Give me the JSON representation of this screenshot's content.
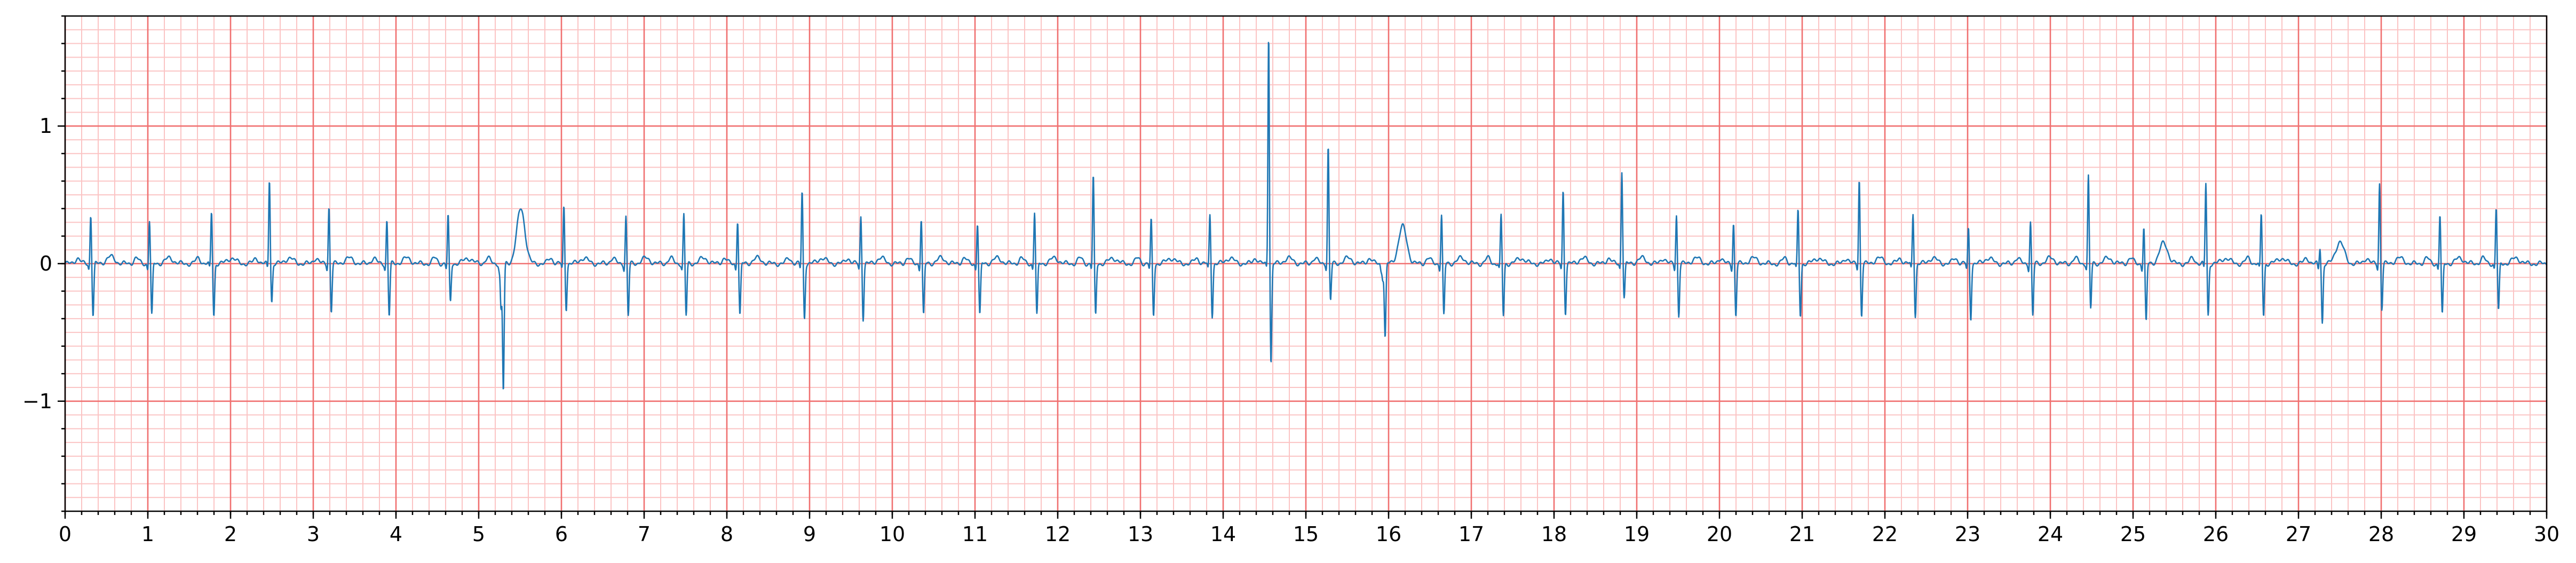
{
  "chart_data": {
    "type": "line",
    "title": "",
    "xlabel": "",
    "ylabel": "",
    "xlim": [
      0,
      30
    ],
    "ylim": [
      -1.8,
      1.8
    ],
    "x_ticks": [
      "0",
      "1",
      "2",
      "3",
      "4",
      "5",
      "6",
      "7",
      "8",
      "9",
      "10",
      "11",
      "12",
      "13",
      "14",
      "15",
      "16",
      "17",
      "18",
      "19",
      "20",
      "21",
      "22",
      "23",
      "24",
      "25",
      "26",
      "27",
      "28",
      "29",
      "30"
    ],
    "y_ticks": [
      {
        "value": 1,
        "label": "1"
      },
      {
        "value": 0,
        "label": "0"
      },
      {
        "value": -1,
        "label": "−1"
      }
    ],
    "grid": {
      "major_step_x": 1,
      "minor_step_x": 0.2,
      "major_step_y": 1,
      "minor_step_y": 0.1,
      "major_color": "#f07070",
      "minor_color": "#fbc4c4"
    },
    "series": [
      {
        "color": "#1f77b4",
        "baseline": 0.0,
        "beats": [
          {
            "t": 0.31,
            "r": 0.36,
            "s": -0.38,
            "tw": 0.05
          },
          {
            "t": 1.02,
            "r": 0.32,
            "s": -0.38,
            "tw": 0.04
          },
          {
            "t": 1.77,
            "r": 0.38,
            "s": -0.38,
            "tw": 0.04
          },
          {
            "t": 2.47,
            "r": 0.62,
            "s": -0.28,
            "tw": 0.04
          },
          {
            "t": 3.19,
            "r": 0.42,
            "s": -0.35,
            "tw": 0.04
          },
          {
            "t": 3.89,
            "r": 0.32,
            "s": -0.38,
            "tw": 0.04
          },
          {
            "t": 4.63,
            "r": 0.35,
            "s": -0.28,
            "tw": 0.04
          },
          {
            "t": 5.27,
            "r": -0.33,
            "s": -0.93,
            "tw": 0.4
          },
          {
            "t": 6.03,
            "r": 0.42,
            "s": -0.33,
            "tw": 0.04
          },
          {
            "t": 6.78,
            "r": 0.35,
            "s": -0.38,
            "tw": 0.04
          },
          {
            "t": 7.48,
            "r": 0.36,
            "s": -0.38,
            "tw": 0.04
          },
          {
            "t": 8.13,
            "r": 0.32,
            "s": -0.38,
            "tw": 0.04
          },
          {
            "t": 8.91,
            "r": 0.53,
            "s": -0.4,
            "tw": 0.04
          },
          {
            "t": 9.62,
            "r": 0.35,
            "s": -0.4,
            "tw": 0.04
          },
          {
            "t": 10.35,
            "r": 0.33,
            "s": -0.38,
            "tw": 0.04
          },
          {
            "t": 11.03,
            "r": 0.3,
            "s": -0.38,
            "tw": 0.04
          },
          {
            "t": 11.72,
            "r": 0.38,
            "s": -0.38,
            "tw": 0.04
          },
          {
            "t": 12.43,
            "r": 0.64,
            "s": -0.38,
            "tw": 0.04
          },
          {
            "t": 13.13,
            "r": 0.32,
            "s": -0.38,
            "tw": 0.04
          },
          {
            "t": 13.84,
            "r": 0.36,
            "s": -0.38,
            "tw": 0.04
          },
          {
            "t": 14.55,
            "r": 1.68,
            "s": -0.73,
            "tw": 0.04
          },
          {
            "t": 15.27,
            "r": 0.86,
            "s": -0.27,
            "tw": 0.04
          },
          {
            "t": 15.93,
            "r": -0.1,
            "s": -0.54,
            "tw": 0.27
          },
          {
            "t": 16.64,
            "r": 0.36,
            "s": -0.38,
            "tw": 0.04
          },
          {
            "t": 17.36,
            "r": 0.35,
            "s": -0.38,
            "tw": 0.04
          },
          {
            "t": 18.11,
            "r": 0.54,
            "s": -0.36,
            "tw": 0.04
          },
          {
            "t": 18.82,
            "r": 0.68,
            "s": -0.25,
            "tw": 0.04
          },
          {
            "t": 19.48,
            "r": 0.36,
            "s": -0.38,
            "tw": 0.04
          },
          {
            "t": 20.17,
            "r": 0.3,
            "s": -0.38,
            "tw": 0.04
          },
          {
            "t": 20.95,
            "r": 0.39,
            "s": -0.38,
            "tw": 0.04
          },
          {
            "t": 21.69,
            "r": 0.62,
            "s": -0.38,
            "tw": 0.04
          },
          {
            "t": 22.34,
            "r": 0.37,
            "s": -0.38,
            "tw": 0.04
          },
          {
            "t": 23.01,
            "r": 0.26,
            "s": -0.4,
            "tw": 0.04
          },
          {
            "t": 23.76,
            "r": 0.31,
            "s": -0.38,
            "tw": 0.04
          },
          {
            "t": 24.46,
            "r": 0.64,
            "s": -0.33,
            "tw": 0.04
          },
          {
            "t": 25.13,
            "r": 0.27,
            "s": -0.43,
            "tw": 0.15
          },
          {
            "t": 25.88,
            "r": 0.59,
            "s": -0.38,
            "tw": 0.04
          },
          {
            "t": 26.55,
            "r": 0.36,
            "s": -0.38,
            "tw": 0.04
          },
          {
            "t": 27.26,
            "r": 0.12,
            "s": -0.43,
            "tw": 0.16
          },
          {
            "t": 27.98,
            "r": 0.59,
            "s": -0.33,
            "tw": 0.04
          },
          {
            "t": 28.71,
            "r": 0.36,
            "s": -0.38,
            "tw": 0.04
          },
          {
            "t": 29.39,
            "r": 0.41,
            "s": -0.35,
            "tw": 0.04
          }
        ]
      }
    ]
  }
}
